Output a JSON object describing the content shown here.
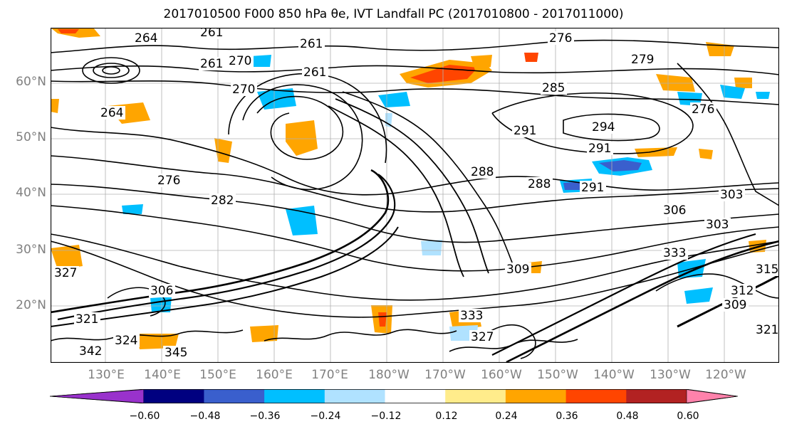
{
  "title": "2017010500 F000 850 hPa θe, IVT Landfall PC (2017010800 - 2017011000)",
  "map": {
    "lat_labels": [
      "60°N",
      "50°N",
      "40°N",
      "30°N",
      "20°N"
    ],
    "lon_labels": [
      "130°E",
      "140°E",
      "150°E",
      "160°E",
      "170°E",
      "180°W",
      "170°W",
      "160°W",
      "150°W",
      "140°W",
      "130°W",
      "120°W"
    ],
    "contour_labels": [
      "264",
      "261",
      "261",
      "270",
      "276",
      "279",
      "261",
      "270",
      "261",
      "264",
      "276",
      "285",
      "294",
      "291",
      "291",
      "288",
      "288",
      "291",
      "282",
      "276",
      "303",
      "306",
      "303",
      "309",
      "333",
      "333",
      "327",
      "306",
      "312",
      "315",
      "309",
      "327",
      "321",
      "324",
      "342",
      "345",
      "321"
    ]
  },
  "colorbar": {
    "tick_labels": [
      "−0.60",
      "−0.48",
      "−0.36",
      "−0.24",
      "−0.12",
      "0.12",
      "0.24",
      "0.36",
      "0.48",
      "0.60"
    ],
    "colors": [
      "#9932cc",
      "#000080",
      "#3a5fcd",
      "#00bfff",
      "#b0e2ff",
      "#ffffff",
      "#ffec8b",
      "#ffa500",
      "#ff4500",
      "#b22222",
      "#ff82ab"
    ]
  }
}
